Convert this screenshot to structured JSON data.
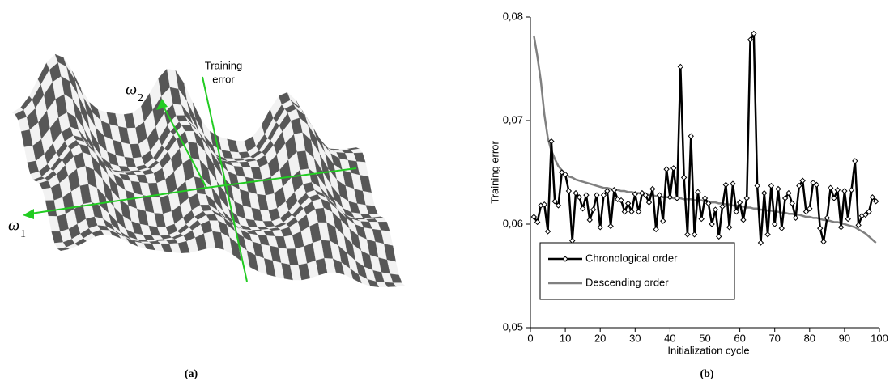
{
  "panel_a": {
    "vertical_axis_label_lines": [
      "Training",
      "error"
    ],
    "axis_symbols": [
      {
        "symbol": "ω",
        "subscript": "2"
      },
      {
        "symbol": "ω",
        "subscript": "1"
      }
    ],
    "caption": "(a)"
  },
  "chart_data": {
    "type": "line",
    "caption": "(b)",
    "xlabel": "Initialization cycle",
    "ylabel": "Training error",
    "x": [
      1,
      2,
      3,
      4,
      5,
      6,
      7,
      8,
      9,
      10,
      11,
      12,
      13,
      14,
      15,
      16,
      17,
      18,
      19,
      20,
      21,
      22,
      23,
      24,
      25,
      26,
      27,
      28,
      29,
      30,
      31,
      32,
      33,
      34,
      35,
      36,
      37,
      38,
      39,
      40,
      41,
      42,
      43,
      44,
      45,
      46,
      47,
      48,
      49,
      50,
      51,
      52,
      53,
      54,
      55,
      56,
      57,
      58,
      59,
      60,
      61,
      62,
      63,
      64,
      65,
      66,
      67,
      68,
      69,
      70,
      71,
      72,
      73,
      74,
      75,
      76,
      77,
      78,
      79,
      80,
      81,
      82,
      83,
      84,
      85,
      86,
      87,
      88,
      89,
      90,
      91,
      92,
      93,
      94,
      95,
      96,
      97,
      98,
      99
    ],
    "series": [
      {
        "name": "Chronological order",
        "color": "#000000",
        "marker": "diamond",
        "values": [
          0.0607,
          0.0602,
          0.0618,
          0.0619,
          0.0593,
          0.068,
          0.0622,
          0.0618,
          0.065,
          0.0648,
          0.0632,
          0.0584,
          0.063,
          0.0626,
          0.0615,
          0.0628,
          0.0604,
          0.0614,
          0.0628,
          0.0597,
          0.0628,
          0.0632,
          0.0598,
          0.0633,
          0.0624,
          0.0623,
          0.0612,
          0.062,
          0.0612,
          0.0629,
          0.0612,
          0.063,
          0.0628,
          0.0621,
          0.0634,
          0.0595,
          0.0628,
          0.0603,
          0.0653,
          0.0626,
          0.0654,
          0.0625,
          0.0752,
          0.0645,
          0.059,
          0.0685,
          0.059,
          0.0631,
          0.0605,
          0.0625,
          0.062,
          0.06,
          0.0614,
          0.0588,
          0.0617,
          0.0638,
          0.0597,
          0.0639,
          0.0612,
          0.0621,
          0.0604,
          0.0625,
          0.0778,
          0.0784,
          0.0637,
          0.0582,
          0.063,
          0.059,
          0.0637,
          0.06,
          0.0634,
          0.0596,
          0.0625,
          0.063,
          0.062,
          0.0606,
          0.0637,
          0.0642,
          0.0612,
          0.0615,
          0.064,
          0.0638,
          0.0596,
          0.0583,
          0.0606,
          0.0635,
          0.0625,
          0.0633,
          0.0597,
          0.0632,
          0.0605,
          0.0633,
          0.0661,
          0.0599,
          0.0608,
          0.0609,
          0.0612,
          0.0626,
          0.0622
        ]
      },
      {
        "name": "Descending order",
        "color": "#808080",
        "values": [
          0.0782,
          0.0762,
          0.0738,
          0.0706,
          0.0683,
          0.0671,
          0.0663,
          0.0656,
          0.0652,
          0.0649,
          0.0646,
          0.0645,
          0.0643,
          0.0642,
          0.0641,
          0.064,
          0.0639,
          0.0638,
          0.0637,
          0.0636,
          0.0635,
          0.0635,
          0.0634,
          0.0633,
          0.0633,
          0.0632,
          0.0632,
          0.0631,
          0.0631,
          0.063,
          0.063,
          0.0629,
          0.0629,
          0.0628,
          0.0628,
          0.0627,
          0.0627,
          0.0626,
          0.0626,
          0.0626,
          0.0625,
          0.0625,
          0.0625,
          0.0624,
          0.0624,
          0.0624,
          0.0623,
          0.0623,
          0.0623,
          0.0622,
          0.0622,
          0.0621,
          0.0621,
          0.062,
          0.062,
          0.0619,
          0.0619,
          0.0618,
          0.0618,
          0.0617,
          0.0617,
          0.0616,
          0.0616,
          0.0615,
          0.0615,
          0.0614,
          0.0614,
          0.0613,
          0.0613,
          0.0612,
          0.0612,
          0.0611,
          0.0611,
          0.061,
          0.061,
          0.0609,
          0.0609,
          0.0608,
          0.0607,
          0.0607,
          0.0606,
          0.0606,
          0.0605,
          0.0604,
          0.0604,
          0.0603,
          0.0602,
          0.0602,
          0.0601,
          0.06,
          0.0599,
          0.0598,
          0.0597,
          0.0595,
          0.0593,
          0.0591,
          0.0588,
          0.0585,
          0.0582
        ]
      }
    ],
    "xlim": [
      0,
      100
    ],
    "xticks": [
      0,
      10,
      20,
      30,
      40,
      50,
      60,
      70,
      80,
      90,
      100
    ],
    "ylim": [
      0.05,
      0.08
    ],
    "yticks": [
      {
        "value": 0.05,
        "label": "0,05"
      },
      {
        "value": 0.06,
        "label": "0,06"
      },
      {
        "value": 0.07,
        "label": "0,07"
      },
      {
        "value": 0.08,
        "label": "0,08"
      }
    ],
    "grid": false,
    "legend": "lower left"
  }
}
